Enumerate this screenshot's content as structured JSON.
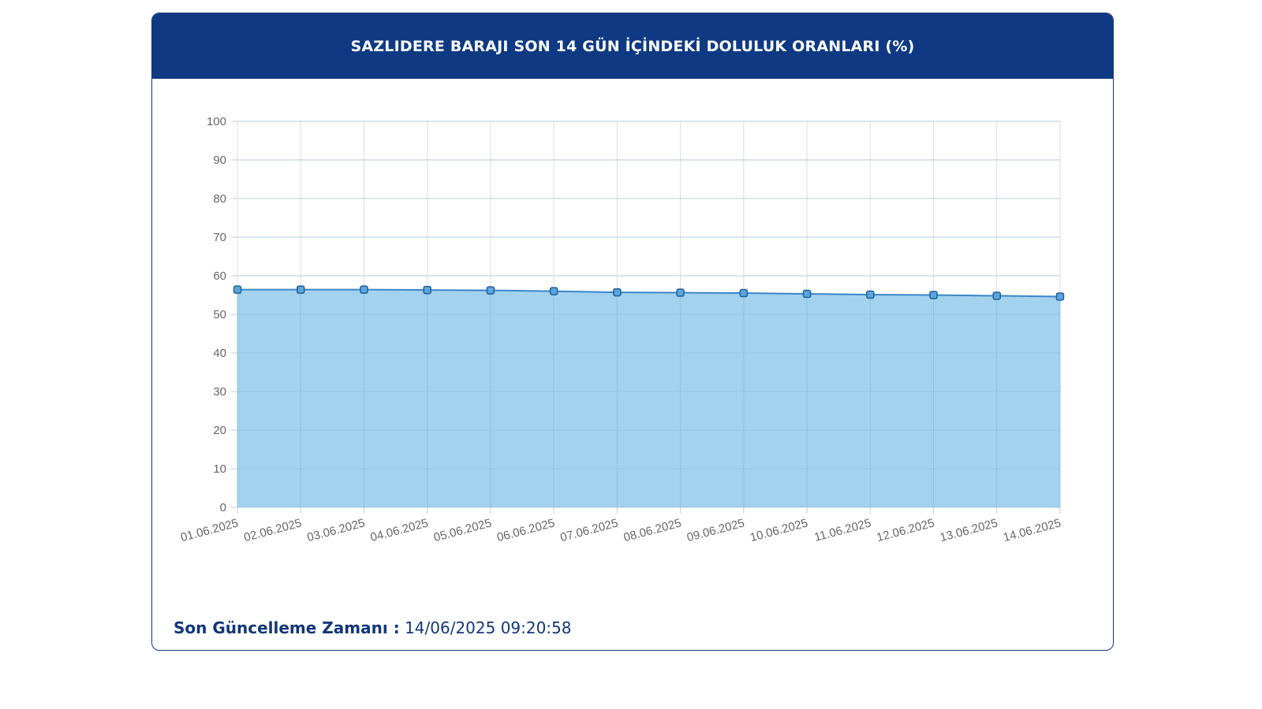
{
  "header": {
    "title": "SAZLIDERE BARAJI SON 14 GÜN İÇİNDEKİ DOLULUK ORANLARI (%)"
  },
  "footer": {
    "label": "Son Güncelleme Zamanı :",
    "value": "14/06/2025 09:20:58"
  },
  "colors": {
    "header_bg": "#0f3a83",
    "line": "#3a86c8",
    "fill": "#9dd0ec",
    "grid": "#dddddd"
  },
  "chart_data": {
    "type": "area",
    "x": [
      "01.06.2025",
      "02.06.2025",
      "03.06.2025",
      "04.06.2025",
      "05.06.2025",
      "06.06.2025",
      "07.06.2025",
      "08.06.2025",
      "09.06.2025",
      "10.06.2025",
      "11.06.2025",
      "12.06.2025",
      "13.06.2025",
      "14.06.2025"
    ],
    "series": [
      {
        "values": [
          56.4,
          56.4,
          56.4,
          56.3,
          56.2,
          56.0,
          55.7,
          55.6,
          55.5,
          55.3,
          55.1,
          55.0,
          54.8,
          54.6
        ]
      }
    ],
    "ylim": [
      0,
      100
    ],
    "yticks": [
      0,
      10,
      20,
      30,
      40,
      50,
      60,
      70,
      80,
      90,
      100
    ],
    "grid": true,
    "legend": "none"
  }
}
